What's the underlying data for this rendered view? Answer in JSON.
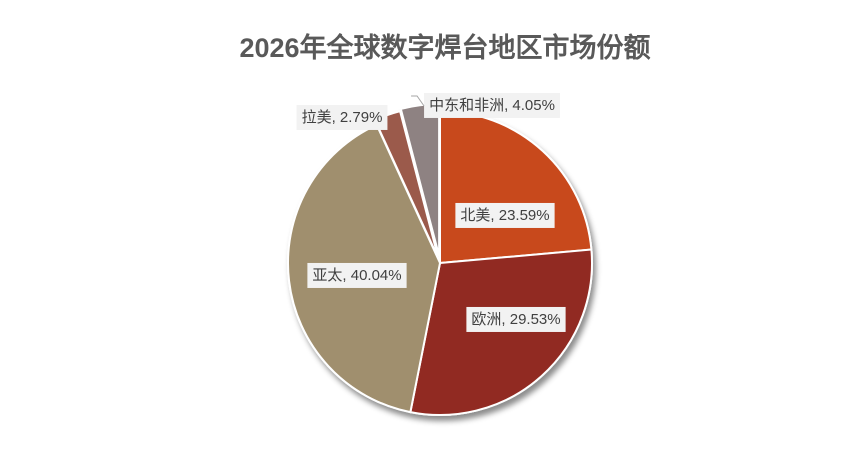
{
  "chart_data": {
    "type": "pie",
    "title": "2026年全球数字焊台地区市场份额",
    "values": [
      23.59,
      29.53,
      40.04,
      2.79,
      4.05
    ],
    "value_labels": [
      "北美, 23.59%",
      "欧洲, 29.53%",
      "亚太, 40.04%",
      "拉美, 2.79%",
      "中东和非洲, 4.05%"
    ],
    "colors": [
      "#c8481c",
      "#912b20",
      "#a08f6e",
      "#9b5a4b",
      "#8e8282"
    ]
  }
}
